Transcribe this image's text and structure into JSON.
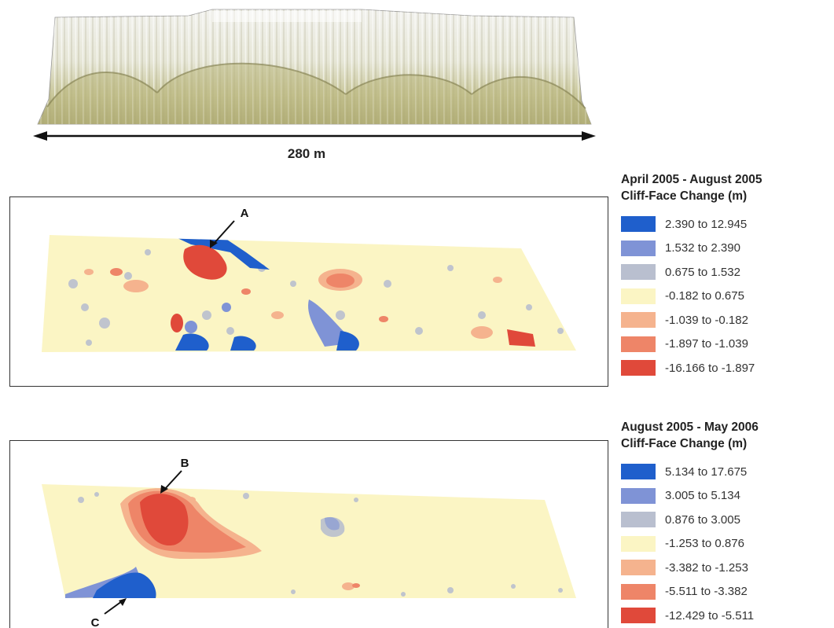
{
  "scale_bar": {
    "label": "280 m"
  },
  "maps": [
    {
      "id": "period-1",
      "title_line1": "April 2005 - August 2005",
      "title_line2": "Cliff-Face Change (m)",
      "annotation_labels": [
        "A"
      ],
      "legend": [
        {
          "range": "2.390 to 12.945",
          "color": "#1f5fcc"
        },
        {
          "range": "1.532 to 2.390",
          "color": "#7f93d6"
        },
        {
          "range": "0.675 to 1.532",
          "color": "#b9bfcf"
        },
        {
          "range": "-0.182 to 0.675",
          "color": "#fbf5c4"
        },
        {
          "range": "-1.039 to -0.182",
          "color": "#f5b38e"
        },
        {
          "range": "-1.897 to -1.039",
          "color": "#ee8568"
        },
        {
          "range": "-16.166 to -1.897",
          "color": "#e0493a"
        }
      ]
    },
    {
      "id": "period-2",
      "title_line1": "August 2005 - May 2006",
      "title_line2": "Cliff-Face Change (m)",
      "annotation_labels": [
        "B",
        "C"
      ],
      "legend": [
        {
          "range": "5.134 to 17.675",
          "color": "#1f5fcc"
        },
        {
          "range": "3.005 to 5.134",
          "color": "#7f93d6"
        },
        {
          "range": "0.876 to 3.005",
          "color": "#b9bfcf"
        },
        {
          "range": "-1.253 to 0.876",
          "color": "#fbf5c4"
        },
        {
          "range": "-3.382 to -1.253",
          "color": "#f5b38e"
        },
        {
          "range": "-5.511 to -3.382",
          "color": "#ee8568"
        },
        {
          "range": "-12.429 to -5.511",
          "color": "#e0493a"
        }
      ]
    }
  ]
}
